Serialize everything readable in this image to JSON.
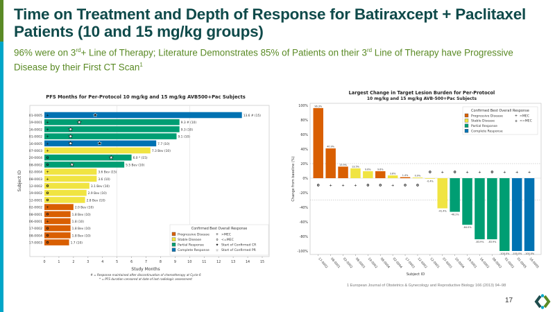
{
  "slide": {
    "title": "Time on Treatment and Depth of Response for Batiraxcept + Paclitaxel Patients (10 and 15 mg/kg groups)",
    "subtitle_parts": [
      "96% were on 3",
      "rd",
      "+ Line of Therapy; Literature Demonstrates 85% of Patients on their 3",
      "rd",
      " Line of Therapy have Progressive Disease by their First CT Scan",
      "1"
    ],
    "footnote": "1 European Journal of Obstetrics & Gynecology and Reproductive Biology 166 (2013) 94–98",
    "page_number": "17",
    "logo_icon": "company-logo-icon",
    "colors": {
      "accent_green": "#5a8a25",
      "accent_cyan": "#00a6c8",
      "title": "#0f4a4a"
    }
  },
  "chart_data": [
    {
      "type": "bar",
      "orientation": "horizontal",
      "title": "PFS Months for Per-Protocol 10 mg/kg and 15 mg/kg AVB500+Pac Subjects",
      "xlabel": "Study Months",
      "ylabel": "Subject ID",
      "xlim": [
        0,
        15
      ],
      "xticks": [
        "0",
        "1",
        "2",
        "3",
        "4",
        "5",
        "6",
        "7",
        "8",
        "9",
        "10",
        "11",
        "12",
        "13",
        "14",
        "15"
      ],
      "grid": true,
      "categories": [
        "01-0005",
        "19-0001",
        "16-0002",
        "01-0002",
        "16-0005",
        "07-0003",
        "20-0004",
        "08-0002",
        "02-0004",
        "08-0003",
        "12-0002",
        "19-0002",
        "12-0001",
        "02-0002",
        "08-0001",
        "06-0001",
        "17-0002",
        "08-0004",
        "17-0003"
      ],
      "values": [
        13.6,
        9.3,
        9.3,
        9.1,
        7.7,
        7.3,
        6.0,
        5.5,
        3.6,
        3.6,
        3.1,
        2.9,
        2.8,
        2.0,
        1.8,
        1.8,
        1.8,
        1.8,
        1.7
      ],
      "data_labels": [
        "13.6 # (15)",
        "9.3 # (10)",
        "9.3 (10)",
        "9.1 (10)",
        "7.7 (10)",
        "7.3 Bev (10)",
        "6.0 * (15)",
        "5.5 Bev (10)",
        "3.6 Bev (15)",
        "3.6 (10)",
        "3.1 Bev (10)",
        "2.9 Bev (10)",
        "2.8 Bev (10)",
        "2.0 Bev (10)",
        "1.8 Bev (10)",
        "1.8 (10)",
        "1.8 Bev (10)",
        "1.8 Bev (10)",
        "1.7 (10)"
      ],
      "response": [
        "CR",
        "PR",
        "PR",
        "PR",
        "CR",
        "SD",
        "PR",
        "PR",
        "SD",
        "SD",
        "SD",
        "SD",
        "SD",
        "PD",
        "PD",
        "PD",
        "PD",
        "PD",
        "PD"
      ],
      "mec_markers": [
        "+",
        "+",
        "+",
        "+",
        "+",
        "+",
        "o",
        "o",
        "+",
        "+",
        "o",
        "o",
        "o",
        "+",
        "o",
        "+",
        "o",
        "o",
        "o"
      ],
      "pr_start": [
        null,
        2.4,
        1.8,
        1.8,
        1.8,
        null,
        4.6,
        1.9,
        null,
        null,
        null,
        null,
        null,
        null,
        null,
        null,
        null,
        null,
        null
      ],
      "cr_start": [
        3.5,
        null,
        null,
        null,
        3.8,
        null,
        null,
        null,
        null,
        null,
        null,
        null,
        null,
        null,
        null,
        null,
        null,
        null,
        null
      ],
      "legend": {
        "title": "Confirmed Best Overall Response",
        "position": "bottom-right",
        "items": [
          {
            "key": "PD",
            "label": "Progressive Disease",
            "color": "#d95f02"
          },
          {
            "key": "SD",
            "label": "Stable Disease",
            "color": "#f0e442"
          },
          {
            "key": "PR",
            "label": "Partial Response",
            "color": "#009e73"
          },
          {
            "key": "CR",
            "label": "Complete Response",
            "color": "#0072b2"
          }
        ],
        "marker_items": [
          {
            "symbol": "+",
            "label": ">MEC"
          },
          {
            "symbol": "o",
            "label": "<=MEC"
          },
          {
            "symbol": "★",
            "label": "Start of Confirmed CR"
          },
          {
            "symbol": "☆",
            "label": "Start of Confirmed PR"
          }
        ]
      },
      "notes": [
        "# = Response maintained after discontinuation of chemotherapy at Cycle 6",
        "* = PFS duration censored at date of last radiologic assessment"
      ]
    },
    {
      "type": "bar",
      "orientation": "vertical",
      "title": "Largest Change in Target Lesion Burden for Per-Protocol",
      "subtitle": "10 mg/kg and 15 mg/kg AVB-500+Pac Subjects",
      "xlabel": "Subject ID",
      "ylabel": "Change from baseline (%)",
      "ylim": [
        -100,
        100
      ],
      "yticks": [
        "100%",
        "80%",
        "60%",
        "40%",
        "20%",
        "0%",
        "-20%",
        "-40%",
        "-60%",
        "-80%",
        "-100%"
      ],
      "reference_lines": [
        20,
        -30
      ],
      "categories": [
        "17-0002",
        "08-0001",
        "02-0002",
        "08-0003",
        "19-0002",
        "08-0004",
        "02-0004",
        "17-0003",
        "12-0002",
        "12-0001",
        "07-0003",
        "20-0004",
        "19-0001",
        "16-0002",
        "08-0002",
        "01-0002",
        "01-0005",
        "16-0005"
      ],
      "values": [
        96.3,
        40.9,
        15.9,
        13.5,
        9.6,
        9.6,
        3.8,
        1.4,
        0.9,
        -0.4,
        -41.4,
        -46.2,
        -64.0,
        -83.9,
        -83.9,
        -100.0,
        -100.0,
        -100.0
      ],
      "data_labels": [
        "96.3%",
        "40.9%",
        "15.9%",
        "13.5%",
        "9.6%",
        "9.6%",
        "3.8%",
        "1.4%",
        "0.9%",
        "-0.4%",
        "-41.4%",
        "-46.2%",
        "-64.0%",
        "-83.9%",
        "-83.9%",
        "-100.0%",
        "-100.0%",
        "-100.0%"
      ],
      "response": [
        "PD",
        "PD",
        "PD",
        "SD",
        "SD",
        "PD",
        "SD",
        "PD",
        "SD",
        "SD",
        "SD",
        "PR",
        "PR",
        "PR",
        "PR",
        "PR",
        "CR",
        "CR"
      ],
      "mec_markers": [
        "o",
        "+",
        "+",
        "+",
        "o",
        "o",
        "+",
        "o",
        "o",
        "o",
        "+",
        "o",
        "+",
        "+",
        "o",
        "+",
        "+",
        "+"
      ],
      "legend": {
        "title": "Confirmed Best Overall Response",
        "position": "top-right",
        "items": [
          {
            "key": "PD",
            "label": "Progressive Disease",
            "color": "#d95f02"
          },
          {
            "key": "SD",
            "label": "Stable Disease",
            "color": "#f0e442"
          },
          {
            "key": "PR",
            "label": "Partial Response",
            "color": "#009e73"
          },
          {
            "key": "CR",
            "label": "Complete Response",
            "color": "#0072b2"
          }
        ],
        "marker_items": [
          {
            "symbol": "+",
            "label": ">MEC"
          },
          {
            "symbol": "o",
            "label": "<=MEC"
          }
        ]
      }
    }
  ]
}
